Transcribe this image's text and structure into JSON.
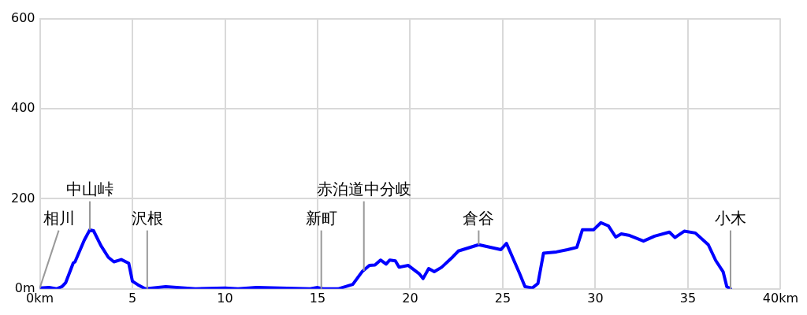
{
  "chart_data": {
    "type": "line",
    "x": [
      0,
      0.5,
      0.9,
      1.2,
      1.4,
      1.8,
      1.9,
      2.4,
      2.7,
      2.9,
      3.3,
      3.7,
      4.0,
      4.4,
      4.8,
      5.0,
      5.3,
      5.7,
      6.8,
      8.4,
      10,
      10.7,
      11.7,
      14.6,
      15,
      15.3,
      16.1,
      16.9,
      17.4,
      17.8,
      18.1,
      18.4,
      18.7,
      18.9,
      19.2,
      19.4,
      19.9,
      20.5,
      20.7,
      21.0,
      21.3,
      21.7,
      22.3,
      22.6,
      23.7,
      24.9,
      25.2,
      25.9,
      26.2,
      26.6,
      26.9,
      27.2,
      27.9,
      28.5,
      29.0,
      29.3,
      29.9,
      30.3,
      30.7,
      31.1,
      31.4,
      31.8,
      32.6,
      33.2,
      34.0,
      34.3,
      34.8,
      35.4,
      36.1,
      36.5,
      36.9,
      37.1,
      37.3
    ],
    "series": [
      {
        "color": "#0000ff",
        "values": [
          2,
          3,
          0,
          5,
          14,
          57,
          60,
          108,
          131,
          129,
          96,
          70,
          60,
          65,
          57,
          17,
          9,
          0,
          5,
          0,
          2,
          0,
          3,
          0,
          3,
          0,
          0,
          10,
          38,
          52,
          53,
          64,
          55,
          64,
          62,
          48,
          52,
          33,
          23,
          45,
          38,
          48,
          71,
          84,
          98,
          87,
          101,
          35,
          5,
          2,
          12,
          79,
          82,
          87,
          92,
          131,
          131,
          147,
          140,
          115,
          122,
          119,
          106,
          117,
          126,
          114,
          128,
          124,
          98,
          63,
          38,
          5,
          0
        ]
      }
    ],
    "xlim": [
      0,
      40
    ],
    "xticks": [
      {
        "value": 0,
        "label": "0km"
      },
      5,
      10,
      15,
      20,
      25,
      30,
      35,
      {
        "value": 40,
        "label": "40km"
      }
    ],
    "ylim": [
      0,
      600
    ],
    "yticks": [
      {
        "value": 0,
        "label": "0m"
      },
      200,
      400,
      600
    ],
    "grid": true,
    "legend": false,
    "marker": "none",
    "line_style": "solid",
    "annotations": [
      {
        "text": "相川",
        "x": 0,
        "y": 2
      },
      {
        "text": "中山峠",
        "x": 2.7,
        "y": 131
      },
      {
        "text": "沢根",
        "x": 5.8,
        "y": 0
      },
      {
        "text": "新町",
        "x": 15.2,
        "y": 0
      },
      {
        "text": "赤泊道中分岐",
        "x": 17.5,
        "y": 40
      },
      {
        "text": "倉谷",
        "x": 23.7,
        "y": 98
      },
      {
        "text": "小木",
        "x": 37.3,
        "y": 0
      }
    ]
  }
}
